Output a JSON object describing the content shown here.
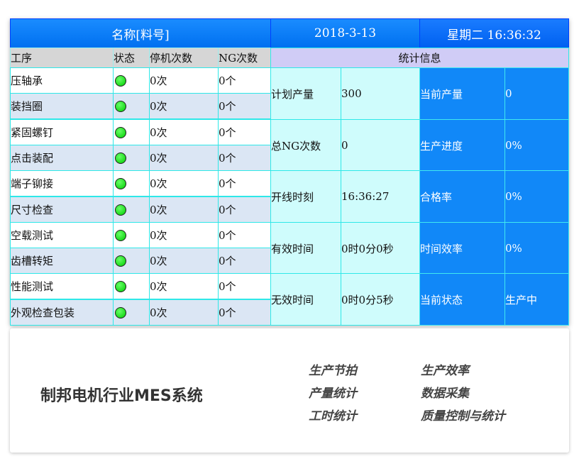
{
  "header": {
    "name": "名称[料号]",
    "date": "2018-3-13",
    "weekday_time": "星期二 16:36:32"
  },
  "columns": [
    "工序",
    "状态",
    "停机次数",
    "NG次数"
  ],
  "stats_title": "统计信息",
  "processes": [
    {
      "name": "压轴承",
      "status": "green",
      "stops": "0次",
      "ng": "0个"
    },
    {
      "name": "装挡圈",
      "status": "green",
      "stops": "0次",
      "ng": "0个"
    },
    {
      "name": "紧固螺钉",
      "status": "green",
      "stops": "0次",
      "ng": "0个"
    },
    {
      "name": "点击装配",
      "status": "green",
      "stops": "0次",
      "ng": "0个"
    },
    {
      "name": "端子铆接",
      "status": "green",
      "stops": "0次",
      "ng": "0个"
    },
    {
      "name": "尺寸检查",
      "status": "green",
      "stops": "0次",
      "ng": "0个"
    },
    {
      "name": "空载测试",
      "status": "green",
      "stops": "0次",
      "ng": "0个"
    },
    {
      "name": "齿槽转矩",
      "status": "green",
      "stops": "0次",
      "ng": "0个"
    },
    {
      "name": "性能测试",
      "status": "green",
      "stops": "0次",
      "ng": "0个"
    },
    {
      "name": "外观检查包装",
      "status": "green",
      "stops": "0次",
      "ng": "0个"
    }
  ],
  "stats": [
    {
      "l1": "计划产量",
      "v1": "300",
      "l2": "当前产量",
      "v2": "0"
    },
    {
      "l1": "总NG次数",
      "v1": "0",
      "l2": "生产进度",
      "v2": "0%"
    },
    {
      "l1": "开线时刻",
      "v1": "16:36:27",
      "l2": "合格率",
      "v2": "0%"
    },
    {
      "l1": "有效时间",
      "v1": "0时0分0秒",
      "l2": "时间效率",
      "v2": "0%"
    },
    {
      "l1": "无效时间",
      "v1": "0时0分5秒",
      "l2": "当前状态",
      "v2": "生产中"
    }
  ],
  "card": {
    "title": "制邦电机行业MES系统",
    "features": [
      "生产节拍",
      "生产效率",
      "产量统计",
      "数据采集",
      "工时统计",
      "质量控制与统计"
    ]
  }
}
